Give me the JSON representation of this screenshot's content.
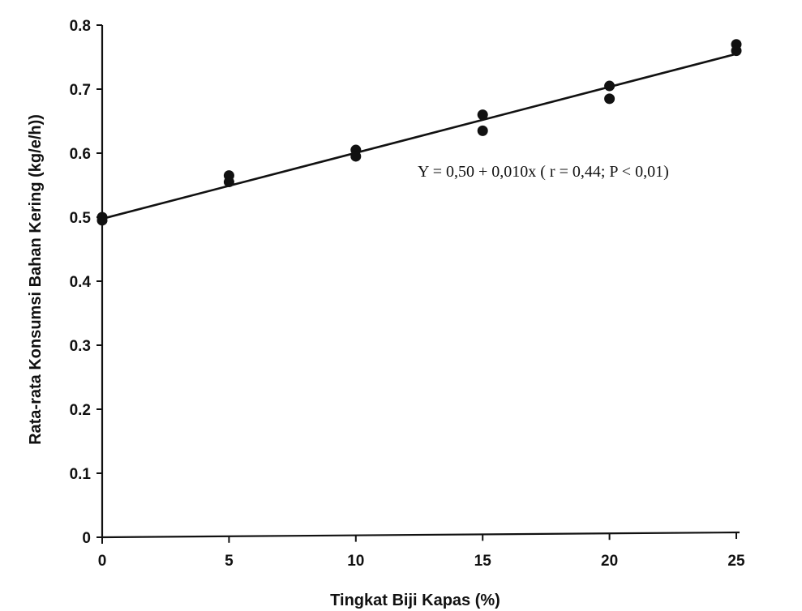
{
  "chart_data": {
    "type": "scatter",
    "title": "",
    "xlabel": "Tingkat Biji Kapas (%)",
    "ylabel": "Rata-rata Konsumsi Bahan Kering (kg/e/h))",
    "xlim": [
      0,
      25
    ],
    "ylim": [
      0,
      0.8
    ],
    "x_ticks": [
      "0",
      "5",
      "10",
      "15",
      "20",
      "25"
    ],
    "y_ticks": [
      "0",
      "0.1",
      "0.2",
      "0.3",
      "0.4",
      "0.5",
      "0.6",
      "0.7",
      "0.8"
    ],
    "grid": false,
    "series": [
      {
        "points": [
          {
            "x": 0,
            "y": 0.5
          },
          {
            "x": 0,
            "y": 0.495
          },
          {
            "x": 5,
            "y": 0.565
          },
          {
            "x": 5,
            "y": 0.555
          },
          {
            "x": 10,
            "y": 0.605
          },
          {
            "x": 10,
            "y": 0.595
          },
          {
            "x": 15,
            "y": 0.66
          },
          {
            "x": 15,
            "y": 0.635
          },
          {
            "x": 20,
            "y": 0.705
          },
          {
            "x": 20,
            "y": 0.685
          },
          {
            "x": 25,
            "y": 0.77
          },
          {
            "x": 25,
            "y": 0.76
          }
        ]
      }
    ],
    "regression": {
      "intercept": 0.5,
      "slope": 0.01,
      "x_range": [
        0,
        25
      ],
      "equation_label": "Y = 0,50 + 0,010x ( r = 0,44; P < 0,01)"
    }
  }
}
